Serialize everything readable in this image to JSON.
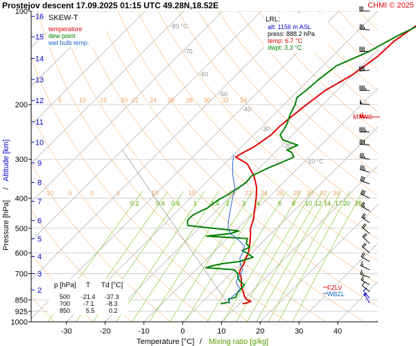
{
  "header": {
    "title": "Prostejov   descent   17.09.2025 01:15 UTC  49.28N,18.52E",
    "credit": "CHMI © 2025"
  },
  "legend": {
    "name": "SKEW-T",
    "items": [
      {
        "label": "temperature",
        "color": "#e00000"
      },
      {
        "label": "dew point",
        "color": "#008000"
      },
      {
        "label": "wet bulb temp.",
        "color": "#1e64c8"
      }
    ]
  },
  "lrl": {
    "title": "LRL:",
    "alt": "alt: 1156 m ASL",
    "press": "press: 888.2 hPa",
    "temp": "temp: 6.7 °C",
    "dwpt": "dwpt: 3.3 °C"
  },
  "levels_table": {
    "headers": [
      "p [hPa]",
      "T",
      "Td [°C]"
    ],
    "rows": [
      [
        "500",
        "-21.4",
        "-37.3"
      ],
      [
        "700",
        "-7.1",
        "-8.3"
      ],
      [
        "850",
        "5.5",
        "0.2"
      ]
    ]
  },
  "markers": {
    "mxws": "MXWS",
    "fzlv": "FZLV",
    "wbzl": "WBZL"
  },
  "chart_data": {
    "type": "line",
    "subtype": "skew-t log-p",
    "title": "SKEW-T",
    "xlabel_left": "Temperature [°C]",
    "xlabel_sep": "/",
    "xlabel_right": "Mixing ratio [g/kg]",
    "ylabel_left": "Pressure [hPa]",
    "ylabel_sep": "/",
    "ylabel_right": "Altitude [km]",
    "xlim": [
      -40,
      50
    ],
    "ylim": [
      1000,
      100
    ],
    "x_ticks": [
      -30,
      -20,
      -10,
      0,
      10,
      20,
      30,
      40
    ],
    "pressure_ticks": [
      100,
      200,
      300,
      400,
      500,
      600,
      700,
      850,
      925,
      1000
    ],
    "altitude_ticks": [
      {
        "km": 2,
        "p": 790
      },
      {
        "km": 3,
        "p": 700
      },
      {
        "km": 4,
        "p": 616
      },
      {
        "km": 5,
        "p": 540
      },
      {
        "km": 6,
        "p": 472
      },
      {
        "km": 7,
        "p": 410
      },
      {
        "km": 8,
        "p": 356
      },
      {
        "km": 9,
        "p": 308
      },
      {
        "km": 10,
        "p": 264
      },
      {
        "km": 11,
        "p": 227
      },
      {
        "km": 12,
        "p": 194
      },
      {
        "km": 13,
        "p": 166
      },
      {
        "km": 14,
        "p": 142
      },
      {
        "km": 15,
        "p": 121
      },
      {
        "km": 16,
        "p": 104
      }
    ],
    "isotherm_labels": [
      {
        "t": -80,
        "label": "-80 °C",
        "p": 112
      },
      {
        "t": -70,
        "label": "-70",
        "p": 135
      },
      {
        "t": -60,
        "label": "-60",
        "p": 160
      },
      {
        "t": -50,
        "label": "-50",
        "p": 185
      },
      {
        "t": -40,
        "label": "-40",
        "p": 207
      },
      {
        "t": -30,
        "label": "-30",
        "p": 240
      },
      {
        "t": -20,
        "label": "-20",
        "p": 272
      },
      {
        "t": -10,
        "label": "-10 °C",
        "p": 305
      }
    ],
    "mixing_ratio_labels": [
      "0.2",
      "0.4",
      "0.6",
      "1",
      "1.4",
      "2",
      "3",
      "4",
      "6",
      "8",
      "10",
      "12",
      "14",
      "17",
      "20",
      "25"
    ],
    "theta_labels_upper": [
      "5",
      "10",
      "15",
      "20",
      "22",
      "24",
      "26",
      "28",
      "30",
      "32",
      "34"
    ],
    "theta_labels_lower": [
      "-10",
      "-5",
      "0",
      "5",
      "10",
      "15",
      "20",
      "22",
      "24",
      "26",
      "28",
      "30",
      "32",
      "34"
    ],
    "series": [
      {
        "name": "temperature",
        "color": "#e00000",
        "points": [
          [
            875,
            10.8
          ],
          [
            870,
            11.6
          ],
          [
            860,
            12.3
          ],
          [
            855,
            11.8
          ],
          [
            850,
            10.9
          ],
          [
            830,
            9.5
          ],
          [
            800,
            7.8
          ],
          [
            760,
            5.5
          ],
          [
            730,
            4.2
          ],
          [
            710,
            3.0
          ],
          [
            700,
            2.2
          ],
          [
            680,
            1.4
          ],
          [
            650,
            0.8
          ],
          [
            630,
            0.0
          ],
          [
            600,
            -0.9
          ],
          [
            560,
            -2.9
          ],
          [
            520,
            -5.3
          ],
          [
            500,
            -6.7
          ],
          [
            470,
            -8.1
          ],
          [
            440,
            -10.1
          ],
          [
            400,
            -13.0
          ],
          [
            370,
            -15.6
          ],
          [
            340,
            -19.2
          ],
          [
            310,
            -24.2
          ],
          [
            295,
            -28.9
          ],
          [
            285,
            -28.1
          ],
          [
            275,
            -27.0
          ],
          [
            265,
            -26.3
          ],
          [
            250,
            -25.5
          ],
          [
            235,
            -25.5
          ],
          [
            220,
            -25.0
          ],
          [
            200,
            -24.2
          ],
          [
            180,
            -23.0
          ],
          [
            160,
            -20.0
          ],
          [
            140,
            -18.3
          ],
          [
            125,
            -18.0
          ],
          [
            112,
            -16.4
          ],
          [
            106,
            -13.7
          ],
          [
            100,
            -13.0
          ]
        ]
      },
      {
        "name": "dew point",
        "color": "#008000",
        "points": [
          [
            875,
            5.1
          ],
          [
            865,
            6.9
          ],
          [
            855,
            6.5
          ],
          [
            845,
            5.9
          ],
          [
            835,
            7.3
          ],
          [
            820,
            7.0
          ],
          [
            800,
            6.5
          ],
          [
            780,
            6.5
          ],
          [
            760,
            6.3
          ],
          [
            740,
            4.2
          ],
          [
            720,
            2.8
          ],
          [
            710,
            2.3
          ],
          [
            700,
            1.8
          ],
          [
            680,
            -0.2
          ],
          [
            670,
            -8.0
          ],
          [
            660,
            -6.8
          ],
          [
            650,
            -4.8
          ],
          [
            640,
            -1.0
          ],
          [
            620,
            1.5
          ],
          [
            600,
            -1.3
          ],
          [
            590,
            -3.1
          ],
          [
            575,
            -2.0
          ],
          [
            560,
            -3.8
          ],
          [
            540,
            -4.8
          ],
          [
            530,
            -16.0
          ],
          [
            520,
            -10.5
          ],
          [
            510,
            -9.0
          ],
          [
            500,
            -16.5
          ],
          [
            490,
            -23.5
          ],
          [
            480,
            -24.4
          ],
          [
            470,
            -25.0
          ],
          [
            455,
            -25.0
          ],
          [
            445,
            -24.3
          ],
          [
            430,
            -23.0
          ],
          [
            420,
            -22.8
          ],
          [
            405,
            -22.3
          ],
          [
            390,
            -21.2
          ],
          [
            380,
            -20.8
          ],
          [
            370,
            -20.2
          ],
          [
            355,
            -19.6
          ],
          [
            340,
            -20.0
          ],
          [
            320,
            -17.7
          ],
          [
            305,
            -15.4
          ],
          [
            295,
            -13.9
          ],
          [
            285,
            -15.7
          ],
          [
            280,
            -17.5
          ],
          [
            270,
            -16.0
          ],
          [
            260,
            -21.1
          ],
          [
            250,
            -23.2
          ],
          [
            240,
            -23.6
          ],
          [
            230,
            -24.3
          ],
          [
            215,
            -25.9
          ],
          [
            200,
            -27.1
          ],
          [
            190,
            -28.5
          ],
          [
            180,
            -28.0
          ],
          [
            165,
            -27.5
          ],
          [
            150,
            -26.5
          ],
          [
            135,
            -21.8
          ],
          [
            120,
            -18.5
          ],
          [
            110,
            -15.3
          ],
          [
            100,
            -11.0
          ]
        ]
      },
      {
        "name": "wet bulb temp.",
        "color": "#1e64c8",
        "points": [
          [
            875,
            7.5
          ],
          [
            850,
            6.3
          ],
          [
            820,
            6.3
          ],
          [
            800,
            6.8
          ],
          [
            780,
            6.1
          ],
          [
            760,
            4.5
          ],
          [
            740,
            3.3
          ],
          [
            720,
            3.0
          ],
          [
            700,
            2.6
          ],
          [
            680,
            2.0
          ],
          [
            650,
            -0.2
          ],
          [
            620,
            -1.9
          ],
          [
            600,
            -2.3
          ],
          [
            570,
            -3.7
          ],
          [
            540,
            -7.4
          ],
          [
            520,
            -10.5
          ],
          [
            500,
            -12.5
          ],
          [
            470,
            -14.5
          ],
          [
            440,
            -16.4
          ],
          [
            400,
            -19.1
          ],
          [
            370,
            -21.2
          ],
          [
            340,
            -24.7
          ],
          [
            310,
            -28.0
          ],
          [
            290,
            -30.0
          ]
        ]
      }
    ],
    "wind_barbs": [
      {
        "p": 100,
        "dir": 270,
        "kt": 30
      },
      {
        "p": 115,
        "dir": 275,
        "kt": 35
      },
      {
        "p": 135,
        "dir": 270,
        "kt": 40
      },
      {
        "p": 155,
        "dir": 265,
        "kt": 40
      },
      {
        "p": 180,
        "dir": 270,
        "kt": 45
      },
      {
        "p": 200,
        "dir": 275,
        "kt": 50
      },
      {
        "p": 220,
        "dir": 270,
        "kt": 65
      },
      {
        "p": 245,
        "dir": 270,
        "kt": 45
      },
      {
        "p": 270,
        "dir": 275,
        "kt": 40
      },
      {
        "p": 300,
        "dir": 280,
        "kt": 35
      },
      {
        "p": 330,
        "dir": 285,
        "kt": 35
      },
      {
        "p": 360,
        "dir": 290,
        "kt": 30
      },
      {
        "p": 400,
        "dir": 295,
        "kt": 30
      },
      {
        "p": 440,
        "dir": 300,
        "kt": 25
      },
      {
        "p": 480,
        "dir": 305,
        "kt": 25
      },
      {
        "p": 520,
        "dir": 310,
        "kt": 20
      },
      {
        "p": 560,
        "dir": 315,
        "kt": 20
      },
      {
        "p": 600,
        "dir": 310,
        "kt": 20
      },
      {
        "p": 640,
        "dir": 300,
        "kt": 20
      },
      {
        "p": 680,
        "dir": 295,
        "kt": 15
      },
      {
        "p": 720,
        "dir": 290,
        "kt": 15
      },
      {
        "p": 760,
        "dir": 300,
        "kt": 15
      },
      {
        "p": 800,
        "dir": 310,
        "kt": 10
      },
      {
        "p": 840,
        "dir": 320,
        "kt": 10
      },
      {
        "p": 870,
        "dir": 330,
        "kt": 5
      }
    ],
    "colors": {
      "isotherm": "#b4b4b4",
      "dry_adiabat": "#fcc896",
      "mixing_ratio": "#96d050",
      "mixing_label": "#50a000",
      "altitude": "#0000cc",
      "mxws": "#e00000",
      "grid": "#c8c8c8"
    }
  }
}
